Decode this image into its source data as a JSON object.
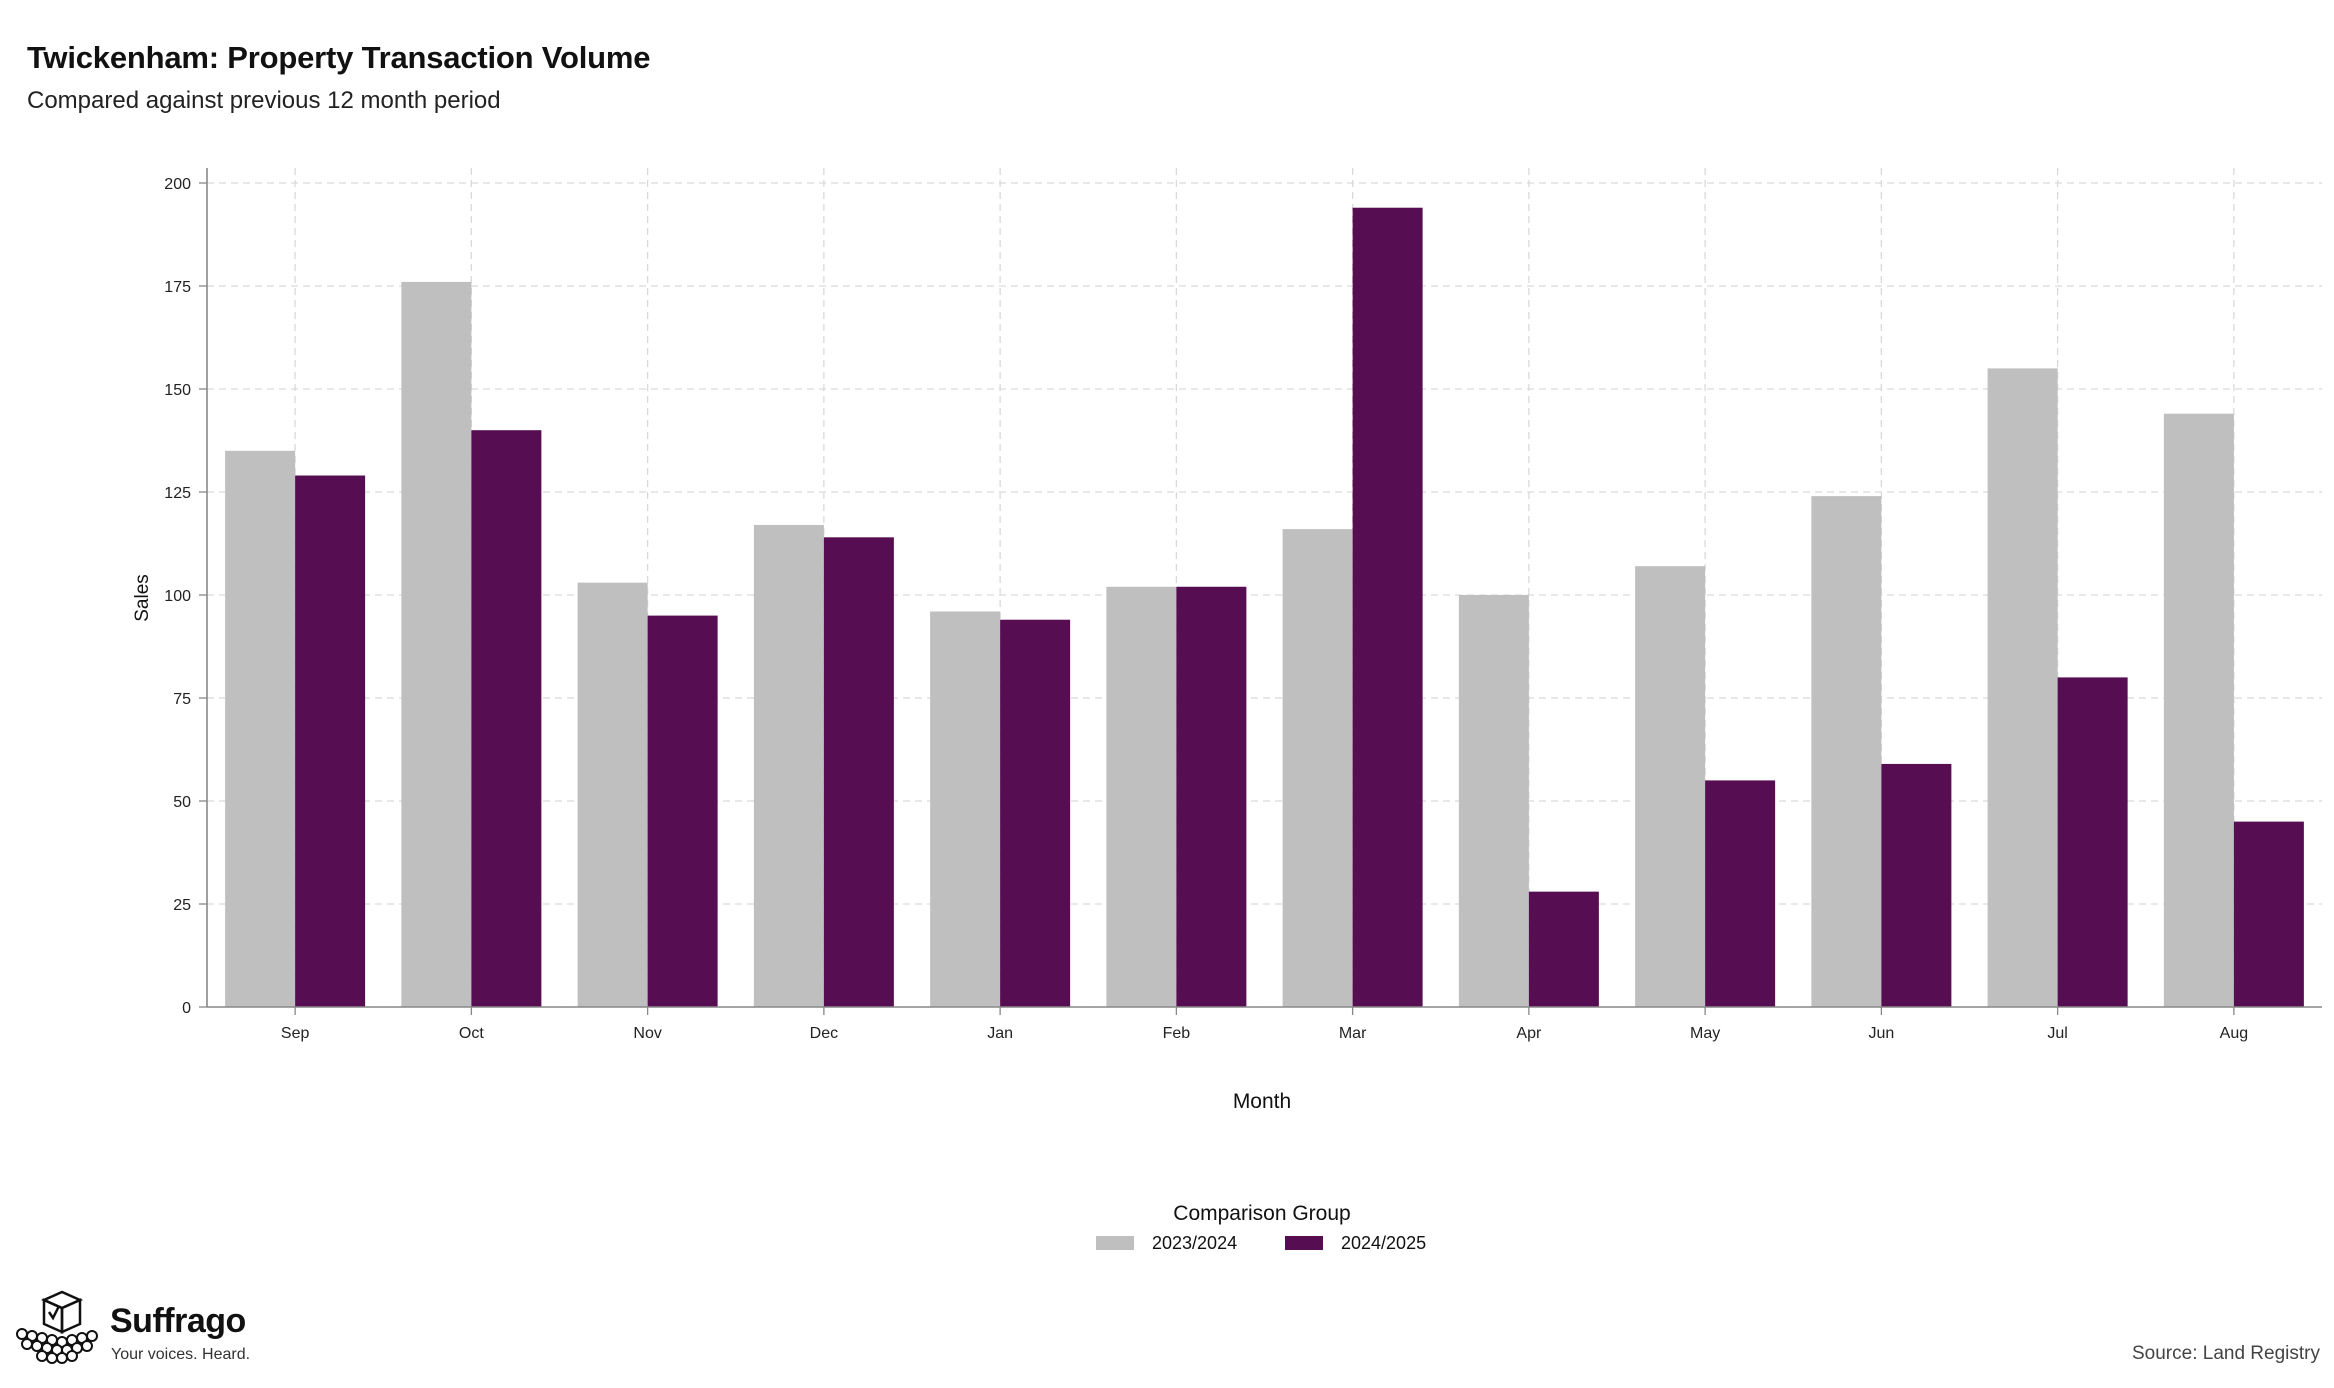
{
  "header": {
    "title": "Twickenham: Property Transaction Volume",
    "subtitle": "Compared against previous 12 month period"
  },
  "chart_data": {
    "type": "bar",
    "categories": [
      "Sep",
      "Oct",
      "Nov",
      "Dec",
      "Jan",
      "Feb",
      "Mar",
      "Apr",
      "May",
      "Jun",
      "Jul",
      "Aug"
    ],
    "series": [
      {
        "name": "2023/2024",
        "color": "#bfbfbf",
        "values": [
          135,
          176,
          103,
          117,
          96,
          102,
          116,
          100,
          107,
          124,
          155,
          144
        ]
      },
      {
        "name": "2024/2025",
        "color": "#570d52",
        "values": [
          129,
          140,
          95,
          114,
          94,
          102,
          194,
          28,
          55,
          59,
          80,
          45
        ]
      }
    ],
    "xlabel": "Month",
    "ylabel": "Sales",
    "ylim": [
      0,
      200
    ],
    "yticks": [
      0,
      25,
      50,
      75,
      100,
      125,
      150,
      175,
      200
    ],
    "grid": true,
    "legend": {
      "title": "Comparison Group",
      "position": "bottom"
    }
  },
  "footer": {
    "brand_name": "Suffrago",
    "brand_tagline": "Your voices. Heard.",
    "logo_icon": "ballot-box-icon",
    "source": "Source: Land Registry"
  }
}
